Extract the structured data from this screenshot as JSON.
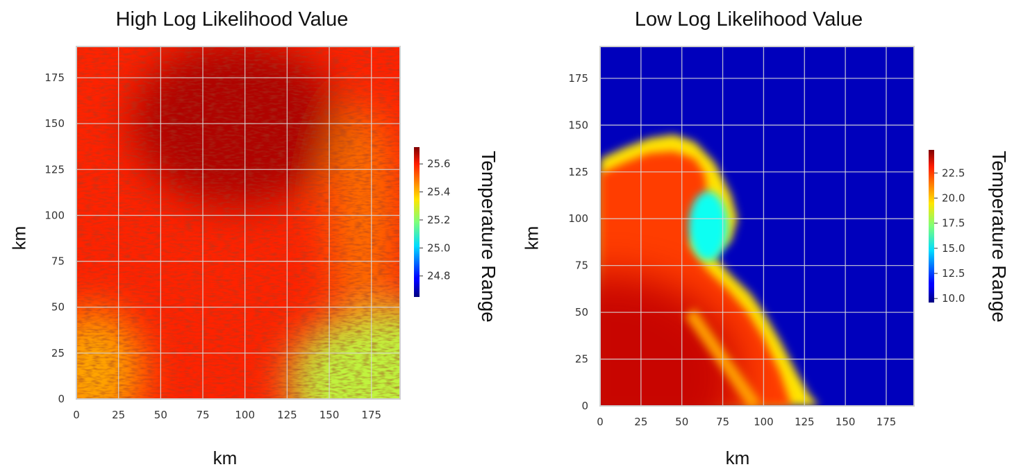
{
  "chart_data": [
    {
      "type": "heatmap",
      "title": "High Log Likelihood Value",
      "xlabel": "km",
      "ylabel": "km",
      "xlim": [
        0,
        192
      ],
      "ylim": [
        0,
        192
      ],
      "xticks": [
        "0",
        "25",
        "50",
        "75",
        "100",
        "125",
        "150",
        "175"
      ],
      "yticks": [
        "0",
        "25",
        "50",
        "75",
        "100",
        "125",
        "150",
        "175"
      ],
      "grid": true,
      "colormap": "jet",
      "colorbar": {
        "label": "Temperature Range",
        "range": [
          24.65,
          25.72
        ],
        "ticks": [
          "24.8",
          "25.0",
          "25.2",
          "25.4",
          "25.6"
        ]
      },
      "field_description_values": {
        "dominant": 25.55,
        "darkest_region_top_center": 25.68,
        "bottom_right_corner": 25.25
      }
    },
    {
      "type": "heatmap",
      "title": "Low Log Likelihood Value",
      "xlabel": "km",
      "ylabel": "km",
      "xlim": [
        0,
        192
      ],
      "ylim": [
        0,
        192
      ],
      "xticks": [
        "0",
        "25",
        "50",
        "75",
        "100",
        "125",
        "150",
        "175"
      ],
      "yticks": [
        "0",
        "25",
        "50",
        "75",
        "100",
        "125",
        "150",
        "175"
      ],
      "grid": true,
      "colormap": "jet",
      "colorbar": {
        "label": "Temperature Range",
        "range": [
          9.6,
          24.8
        ],
        "ticks": [
          "10.0",
          "12.5",
          "15.0",
          "17.5",
          "20.0",
          "22.5"
        ]
      },
      "field_description_values": {
        "cold_water": 10.5,
        "warm_plume": 22.0,
        "plume_edge": 19.5,
        "eddy_core": 15.5,
        "bottom_left": 23.8
      }
    }
  ]
}
